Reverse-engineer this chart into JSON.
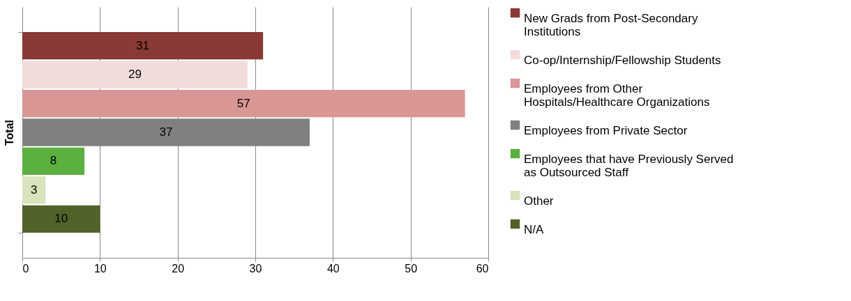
{
  "chart_data": {
    "type": "bar",
    "orientation": "horizontal",
    "categories": [
      null
    ],
    "ylabel": "Total",
    "xlim": [
      0,
      60
    ],
    "xticks": [
      0,
      10,
      20,
      30,
      40,
      50,
      60
    ],
    "grid": "x",
    "legend": "right",
    "data_labels": true,
    "series": [
      {
        "name": "New Grads from Post-Secondary Institutions",
        "color": "#893a36",
        "values": [
          31
        ]
      },
      {
        "name": "Co-op/Internship/Fellowship Students",
        "color": "#f2dcdb",
        "values": [
          29
        ]
      },
      {
        "name": "Employees from Other Hospitals/Healthcare Organizations",
        "color": "#d99694",
        "values": [
          57
        ]
      },
      {
        "name": "Employees from Private Sector",
        "color": "#808080",
        "values": [
          37
        ]
      },
      {
        "name": "Employees that have Previously Served as Outsourced Staff",
        "color": "#5cb040",
        "values": [
          8
        ]
      },
      {
        "name": "Other",
        "color": "#d7e4bc",
        "values": [
          3
        ]
      },
      {
        "name": "N/A",
        "color": "#4f6228",
        "values": [
          10
        ]
      }
    ]
  }
}
